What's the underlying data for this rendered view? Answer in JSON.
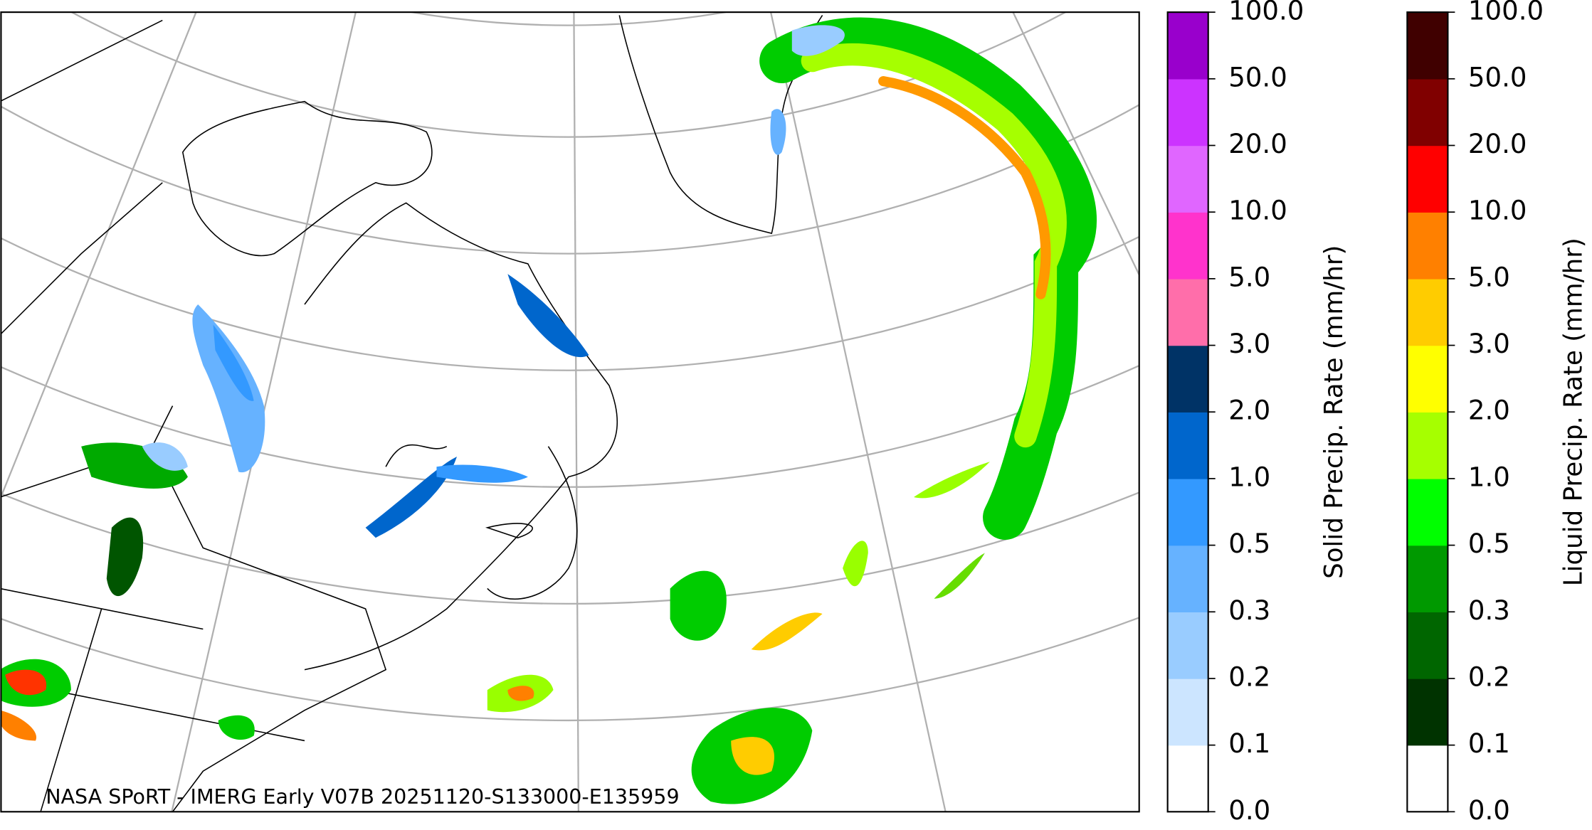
{
  "map": {
    "credit": "NASA SPoRT - IMERG Early V07B 20251120-S133000-E135959",
    "colorbars": [
      {
        "label": "Solid Precip. Rate (mm/hr)",
        "ticks": [
          {
            "value": 0,
            "label": "0.0"
          },
          {
            "value": 0.1,
            "label": "0.1"
          },
          {
            "value": 0.2,
            "label": "0.2"
          },
          {
            "value": 0.3,
            "label": "0.3"
          },
          {
            "value": 0.5,
            "label": "0.5"
          },
          {
            "value": 1,
            "label": "1.0"
          },
          {
            "value": 2,
            "label": "2.0"
          },
          {
            "value": 3,
            "label": "3.0"
          },
          {
            "value": 5,
            "label": "5.0"
          },
          {
            "value": 10,
            "label": "10.0"
          },
          {
            "value": 20,
            "label": "20.0"
          },
          {
            "value": 50,
            "label": "50.0"
          },
          {
            "value": 100,
            "label": "100.0"
          }
        ],
        "colors": [
          "#ffffff",
          "#cce5ff",
          "#99ccff",
          "#66b2ff",
          "#3399ff",
          "#0066cc",
          "#003366",
          "#ff6eaa",
          "#ff33cc",
          "#e066ff",
          "#cc33ff",
          "#9900cc"
        ]
      },
      {
        "label": "Liquid Precip. Rate (mm/hr)",
        "ticks": [
          {
            "value": 0,
            "label": "0.0"
          },
          {
            "value": 0.1,
            "label": "0.1"
          },
          {
            "value": 0.2,
            "label": "0.2"
          },
          {
            "value": 0.3,
            "label": "0.3"
          },
          {
            "value": 0.5,
            "label": "0.5"
          },
          {
            "value": 1,
            "label": "1.0"
          },
          {
            "value": 2,
            "label": "2.0"
          },
          {
            "value": 3,
            "label": "3.0"
          },
          {
            "value": 5,
            "label": "5.0"
          },
          {
            "value": 10,
            "label": "10.0"
          },
          {
            "value": 20,
            "label": "20.0"
          },
          {
            "value": 50,
            "label": "50.0"
          },
          {
            "value": 100,
            "label": "100.0"
          }
        ],
        "colors": [
          "#ffffff",
          "#003300",
          "#006600",
          "#009900",
          "#00ff00",
          "#a6ff00",
          "#ffff00",
          "#ffcc00",
          "#ff8000",
          "#ff0000",
          "#800000",
          "#400000"
        ]
      }
    ]
  }
}
